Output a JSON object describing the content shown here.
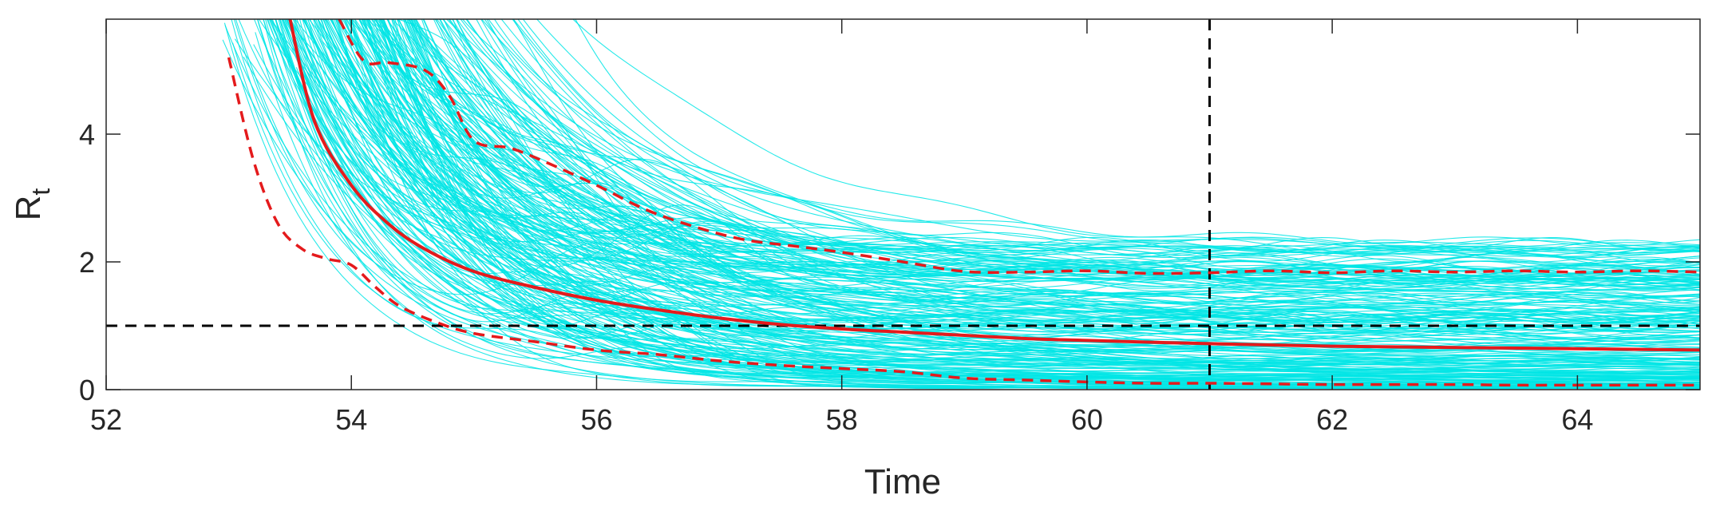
{
  "chart_data": {
    "type": "line",
    "xlabel": "Time",
    "ylabel_main": "R",
    "ylabel_sub": "t",
    "xlim": [
      52,
      65
    ],
    "ylim": [
      0,
      5.8
    ],
    "xticks": [
      52,
      54,
      56,
      58,
      60,
      62,
      64
    ],
    "yticks": [
      0,
      2,
      4
    ],
    "reference_lines": {
      "horizontal_y": 1,
      "vertical_x": 61
    },
    "colors": {
      "samples": "#00e5e5",
      "median": "#e41a1c",
      "bounds": "#e41a1c",
      "reference": "#000000",
      "axes": "#262626"
    },
    "median": {
      "x": [
        53.5,
        53.7,
        54.0,
        54.3,
        54.6,
        55.0,
        55.5,
        56.0,
        56.5,
        57.0,
        57.5,
        58.0,
        58.5,
        59.0,
        59.5,
        60.0,
        61.0,
        62.0,
        63.0,
        64.0,
        65.0
      ],
      "y": [
        5.8,
        4.2,
        3.2,
        2.6,
        2.2,
        1.85,
        1.6,
        1.4,
        1.25,
        1.12,
        1.02,
        0.95,
        0.9,
        0.85,
        0.8,
        0.77,
        0.72,
        0.68,
        0.66,
        0.64,
        0.62
      ]
    },
    "upper_bound": {
      "x": [
        53.9,
        54.1,
        54.3,
        54.6,
        54.8,
        55.0,
        55.3,
        55.6,
        56.0,
        56.4,
        56.8,
        57.2,
        57.6,
        58.0,
        58.5,
        59.0,
        59.5,
        60.0,
        60.5,
        61.0,
        61.5,
        62.0,
        62.5,
        63.0,
        63.5,
        64.0,
        64.5,
        65.0
      ],
      "y": [
        5.8,
        5.15,
        5.12,
        5.0,
        4.6,
        3.9,
        3.78,
        3.55,
        3.2,
        2.82,
        2.55,
        2.35,
        2.25,
        2.15,
        2.0,
        1.85,
        1.84,
        1.86,
        1.82,
        1.83,
        1.86,
        1.83,
        1.86,
        1.84,
        1.86,
        1.84,
        1.86,
        1.84
      ]
    },
    "lower_bound": {
      "x": [
        53.0,
        53.2,
        53.4,
        53.6,
        53.8,
        54.0,
        54.2,
        54.4,
        54.7,
        55.0,
        55.5,
        56.0,
        56.5,
        57.0,
        57.5,
        58.0,
        58.5,
        59.0,
        59.5,
        60.0,
        60.5,
        61.0,
        61.5,
        62.0,
        62.5,
        63.0,
        63.5,
        64.0,
        64.5,
        65.0
      ],
      "y": [
        5.2,
        3.6,
        2.6,
        2.2,
        2.05,
        1.95,
        1.6,
        1.3,
        1.05,
        0.88,
        0.75,
        0.62,
        0.55,
        0.45,
        0.38,
        0.33,
        0.28,
        0.18,
        0.15,
        0.12,
        0.1,
        0.1,
        0.09,
        0.08,
        0.08,
        0.08,
        0.07,
        0.07,
        0.07,
        0.07
      ]
    },
    "sample_band": {
      "count": 240,
      "start_x": [
        52.95,
        54.3
      ],
      "final_y": [
        0.02,
        2.3
      ]
    }
  }
}
